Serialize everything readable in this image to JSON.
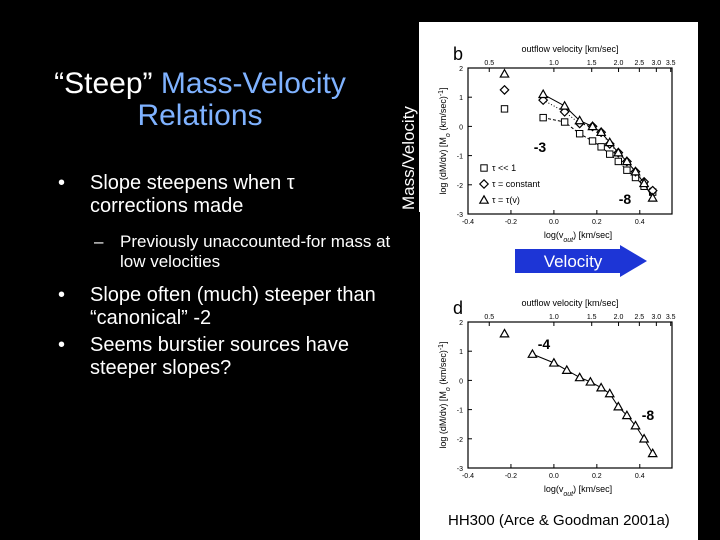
{
  "slide": {
    "title_quoted": "“Steep”",
    "title_rest": " Mass-Velocity",
    "title_line2": "Relations",
    "bullets": [
      "Slope steepens when τ corrections made",
      "Slope often (much) steeper than “canonical” -2",
      "Seems burstier sources have steeper slopes?"
    ],
    "sub_bullet": "Previously unaccounted-for mass at low velocities",
    "vertical_label": "Mass/Velocity",
    "arrow_label": "Velocity",
    "credit": "HH300 (Arce & Goodman 2001a)"
  },
  "colors": {
    "background": "#000000",
    "title_accent": "#7fb2ff",
    "arrow_fill": "#1d35d6",
    "slope_label": "#ff0000"
  },
  "chart_data": [
    {
      "type": "scatter",
      "panel_label": "b",
      "top_axis_label": "outflow velocity  [km/sec]",
      "top_ticks": [
        "0.5",
        "1.0",
        "1.5",
        "2.0",
        "2.5",
        "3.0",
        "3.5"
      ],
      "top_tick_values": [
        0.5,
        1.0,
        1.5,
        2.0,
        2.5,
        3.0,
        3.5
      ],
      "xlabel": "log(v_out)  [km/sec]",
      "xlabel_parts": [
        "log(v",
        "out",
        ")  [km/sec]"
      ],
      "ylabel": "log (dM/dv)  [M_o (km/sec)^-1]",
      "ylabel_parts": [
        "log (dM/dv)  [M",
        "o",
        " (km/sec)",
        "-1",
        "]"
      ],
      "xlim": [
        -0.4,
        0.55
      ],
      "ylim": [
        -3,
        2
      ],
      "x_ticks": [
        "-0.4",
        "-0.2",
        "0.0",
        "0.2",
        "0.4"
      ],
      "x_tick_values": [
        -0.4,
        -0.2,
        0.0,
        0.2,
        0.4
      ],
      "y_ticks": [
        "2",
        "1",
        "0",
        "-1",
        "-2",
        "-3"
      ],
      "y_tick_values": [
        2,
        1,
        0,
        -1,
        -2,
        -3
      ],
      "legend": [
        "τ << 1",
        "τ = constant",
        "τ = τ(v)"
      ],
      "legend_placement": "bottom-left",
      "series": [
        {
          "name": "τ << 1",
          "marker": "square",
          "x": [
            -0.23,
            -0.05,
            0.05,
            0.12,
            0.18,
            0.22,
            0.26,
            0.3,
            0.34,
            0.38,
            0.42,
            0.46
          ],
          "y": [
            0.6,
            0.3,
            0.15,
            -0.25,
            -0.5,
            -0.7,
            -0.95,
            -1.2,
            -1.5,
            -1.75,
            -2.05,
            -2.25
          ]
        },
        {
          "name": "τ = constant",
          "marker": "diamond",
          "x": [
            -0.23,
            -0.05,
            0.05,
            0.12,
            0.18,
            0.22,
            0.26,
            0.3,
            0.34,
            0.38,
            0.42,
            0.46
          ],
          "y": [
            1.25,
            0.9,
            0.5,
            0.1,
            0.0,
            -0.2,
            -0.6,
            -0.9,
            -1.2,
            -1.55,
            -1.9,
            -2.2
          ]
        },
        {
          "name": "τ = τ(v)",
          "marker": "triangle",
          "x": [
            -0.23,
            -0.05,
            0.05,
            0.12,
            0.18,
            0.22,
            0.26,
            0.3,
            0.34,
            0.38,
            0.42,
            0.46
          ],
          "y": [
            1.8,
            1.1,
            0.7,
            0.2,
            0.0,
            -0.2,
            -0.55,
            -0.9,
            -1.2,
            -1.55,
            -1.95,
            -2.45
          ]
        }
      ],
      "slope_annotations": [
        "-3",
        "-8"
      ]
    },
    {
      "type": "scatter",
      "panel_label": "d",
      "top_axis_label": "outflow velocity  [km/sec]",
      "top_ticks": [
        "0.5",
        "1.0",
        "1.5",
        "2.0",
        "2.5",
        "3.0",
        "3.5"
      ],
      "top_tick_values": [
        0.5,
        1.0,
        1.5,
        2.0,
        2.5,
        3.0,
        3.5
      ],
      "xlabel": "log(v_out)  [km/sec]",
      "xlabel_parts": [
        "log(v",
        "out",
        ")  [km/sec]"
      ],
      "ylabel": "log (dM/dv)  [M_o (km/sec)^-1]",
      "ylabel_parts": [
        "log (dM/dv)  [M",
        "o",
        " (km/sec)",
        "-1",
        "]"
      ],
      "xlim": [
        -0.4,
        0.55
      ],
      "ylim": [
        -3,
        2
      ],
      "x_ticks": [
        "-0.4",
        "-0.2",
        "0.0",
        "0.2",
        "0.4"
      ],
      "x_tick_values": [
        -0.4,
        -0.2,
        0.0,
        0.2,
        0.4
      ],
      "y_ticks": [
        "2",
        "1",
        "0",
        "-1",
        "-2",
        "-3"
      ],
      "y_tick_values": [
        2,
        1,
        0,
        -1,
        -2,
        -3
      ],
      "series": [
        {
          "marker": "triangle",
          "x": [
            -0.23,
            -0.1,
            0.0,
            0.06,
            0.12,
            0.17,
            0.22,
            0.26,
            0.3,
            0.34,
            0.38,
            0.42,
            0.46
          ],
          "y": [
            1.6,
            0.9,
            0.6,
            0.35,
            0.1,
            -0.05,
            -0.25,
            -0.45,
            -0.9,
            -1.2,
            -1.55,
            -2.0,
            -2.5
          ]
        }
      ],
      "slope_annotations": [
        "-4",
        "-8"
      ]
    }
  ]
}
